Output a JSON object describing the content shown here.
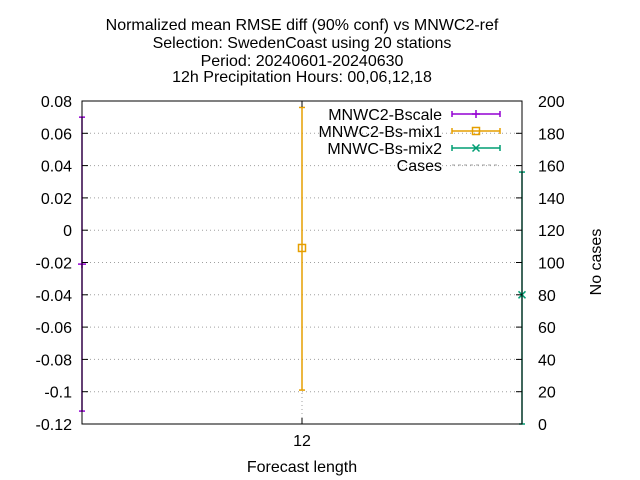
{
  "chart_data": {
    "type": "line",
    "title_lines": [
      "Normalized mean RMSE diff (90% conf) vs MNWC2-ref",
      "Selection: SwedenCoast using    20 stations",
      "Period: 20240601-20240630",
      "12h Precipitation   Hours: 00,06,12,18"
    ],
    "xlabel": "Forecast length",
    "ylabel": "",
    "y2label": "No cases",
    "x_categories": [
      "12"
    ],
    "xlim": [
      11.05,
      12.95
    ],
    "ylim": [
      -0.12,
      0.08
    ],
    "y2lim": [
      0,
      200
    ],
    "yticks": [
      "0.08",
      "0.06",
      "0.04",
      "0.02",
      "0",
      "-0.02",
      "-0.04",
      "-0.06",
      "-0.08",
      "-0.1",
      "-0.12"
    ],
    "y2ticks": [
      "200",
      "180",
      "160",
      "140",
      "120",
      "100",
      "80",
      "60",
      "40",
      "20",
      "0"
    ],
    "grid": true,
    "legend_position": "top-right",
    "series": [
      {
        "name": "MNWC2-Bscale",
        "color": "#9400d3",
        "marker": "plus",
        "x": 11.05,
        "y": -0.021,
        "ylow": -0.112,
        "yhigh": 0.07
      },
      {
        "name": "MNWC2-Bs-mix1",
        "color": "#e69f00",
        "marker": "square",
        "x": 12.0,
        "y": -0.011,
        "ylow": -0.099,
        "yhigh": 0.076
      },
      {
        "name": "MNWC-Bs-mix2",
        "color": "#009e73",
        "marker": "cross",
        "x": 12.95,
        "y": -0.04,
        "ylow": -0.12,
        "yhigh": 0.036
      },
      {
        "name": "Cases",
        "color": "#a0a0a0",
        "marker": "none",
        "dashed": true
      }
    ]
  }
}
